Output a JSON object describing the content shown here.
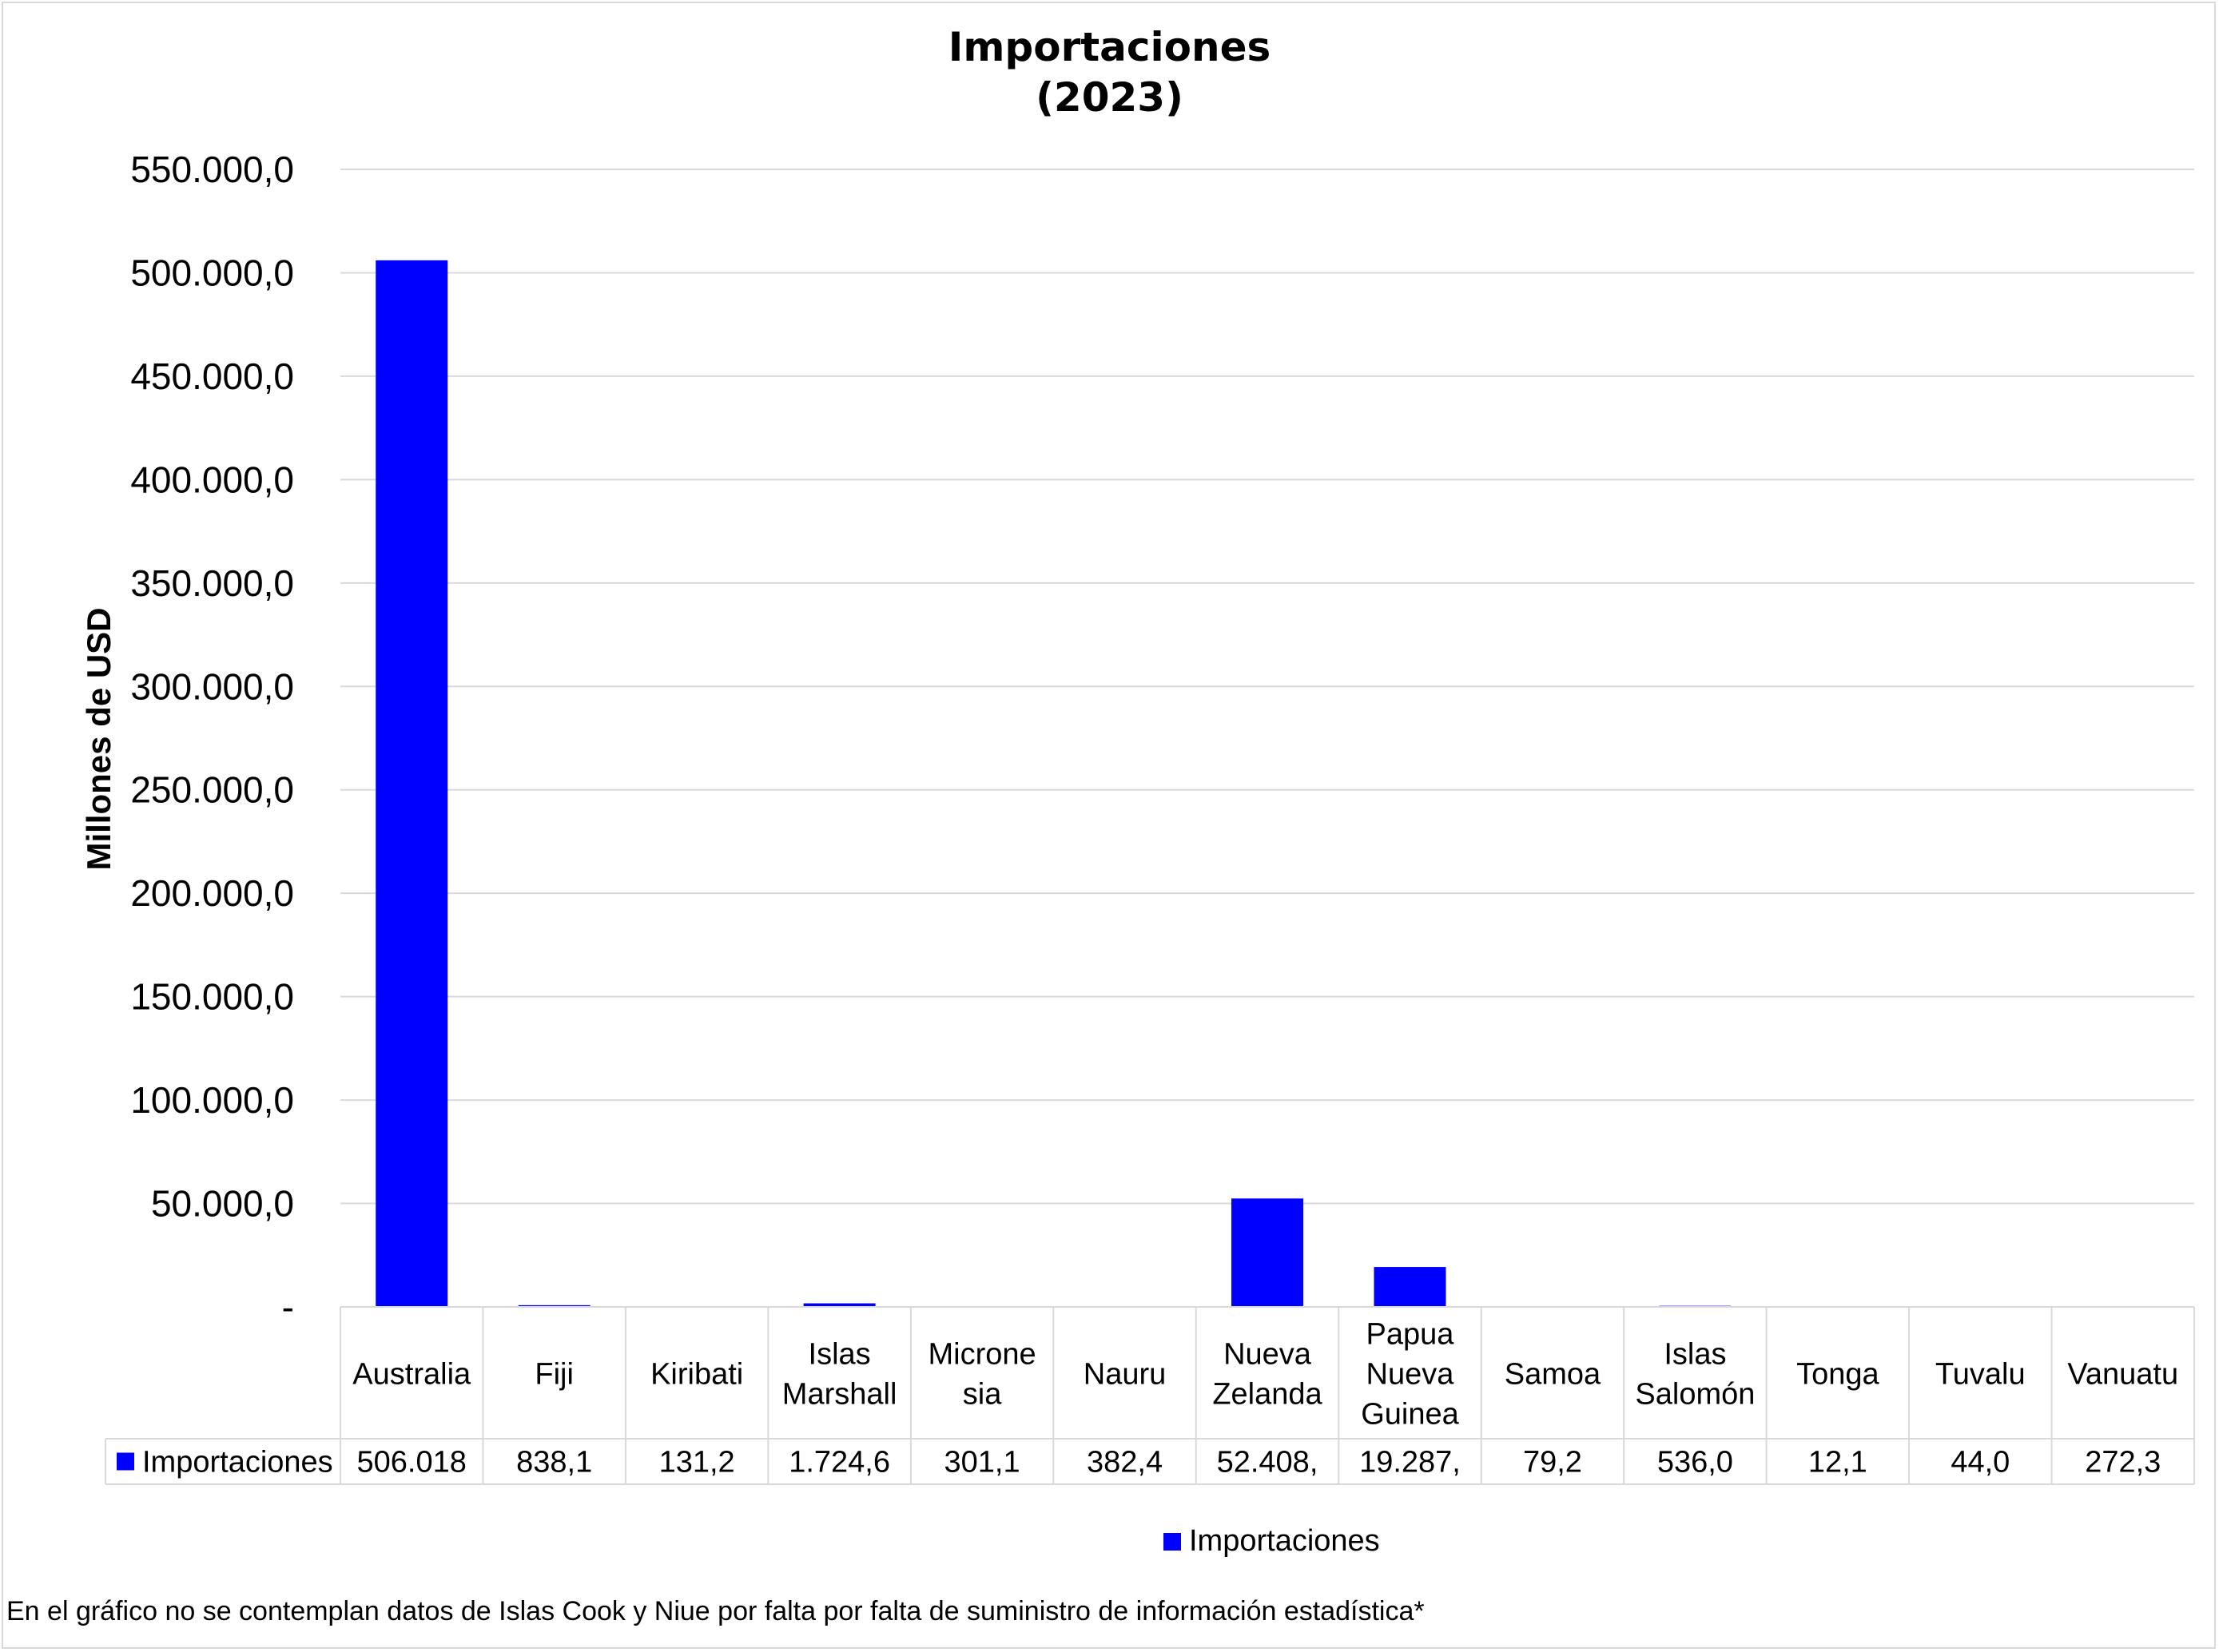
{
  "chart_data": {
    "type": "bar",
    "title": "Importaciones",
    "subtitle": "(2023)",
    "ylabel": "Millones de USD",
    "xlabel": "",
    "ylim": [
      0,
      550000
    ],
    "yticks": [
      0,
      50000,
      100000,
      150000,
      200000,
      250000,
      300000,
      350000,
      400000,
      450000,
      500000,
      550000
    ],
    "ytick_labels": [
      "-",
      "50.000,0",
      "100.000,0",
      "150.000,0",
      "200.000,0",
      "250.000,0",
      "300.000,0",
      "350.000,0",
      "400.000,0",
      "450.000,0",
      "500.000,0",
      "550.000,0"
    ],
    "grid": true,
    "legend": "bottom",
    "categories": [
      [
        "Australia"
      ],
      [
        "Fiji"
      ],
      [
        "Kiribati"
      ],
      [
        "Islas",
        "Marshall"
      ],
      [
        "Microne",
        "sia"
      ],
      [
        "Nauru"
      ],
      [
        "Nueva",
        "Zelanda"
      ],
      [
        "Papua",
        "Nueva",
        "Guinea"
      ],
      [
        "Samoa"
      ],
      [
        "Islas",
        "Salomón"
      ],
      [
        "Tonga"
      ],
      [
        "Tuvalu"
      ],
      [
        "Vanuatu"
      ]
    ],
    "series": [
      {
        "name": "Importaciones",
        "color": "#0000ff",
        "values": [
          506018,
          838.1,
          131.2,
          1724.6,
          301.1,
          382.4,
          52408,
          19287,
          79.2,
          536.0,
          12.1,
          44.0,
          272.3
        ],
        "table_labels": [
          "506.018",
          "838,1",
          "131,2",
          "1.724,6",
          "301,1",
          "382,4",
          "52.408,",
          "19.287,",
          "79,2",
          "536,0",
          "12,1",
          "44,0",
          "272,3"
        ]
      }
    ]
  },
  "legend_label": "Importaciones",
  "footnote": "En el gráfico no se contemplan datos de Islas Cook y Niue por falta por falta de suministro de información estadística*"
}
